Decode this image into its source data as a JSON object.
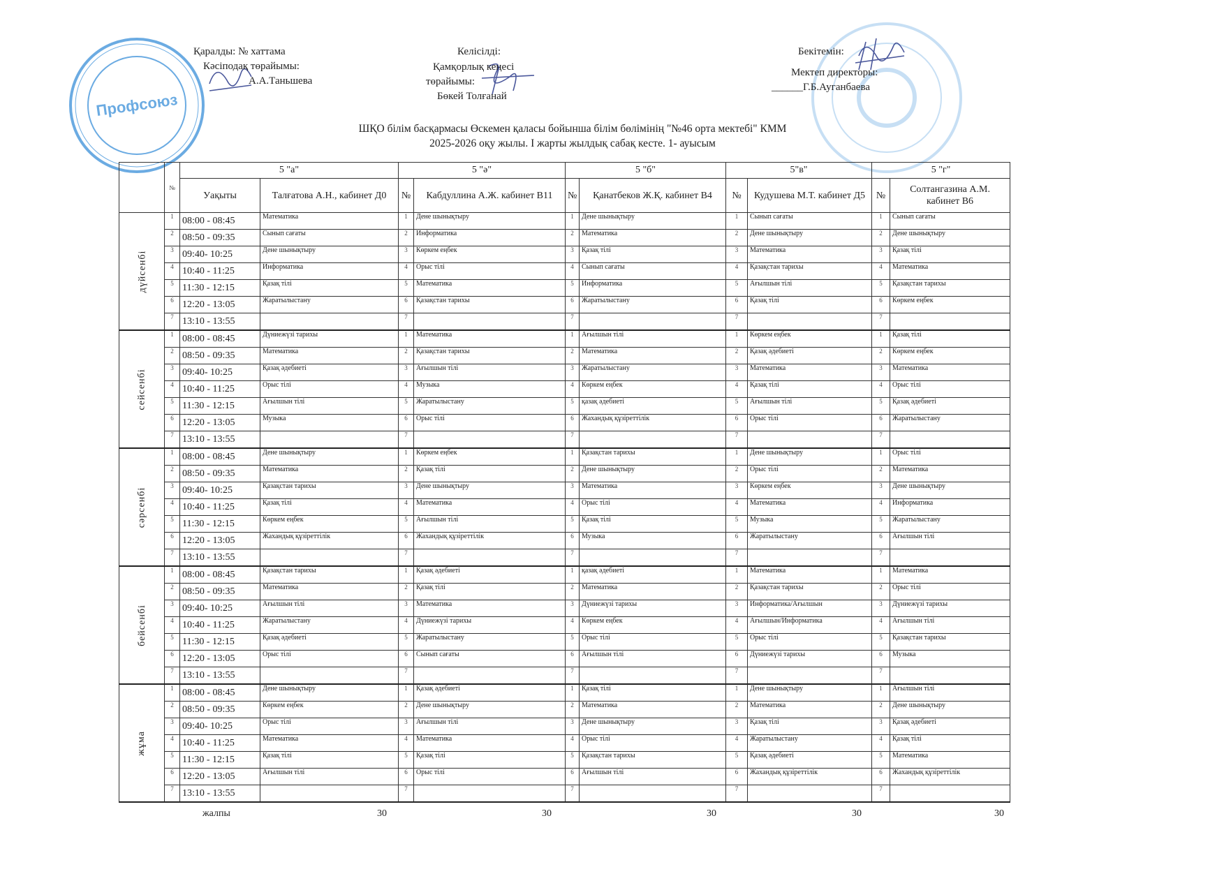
{
  "approvals": {
    "left": {
      "line1": "Қаралды: №        хаттама",
      "line2": "Кәсіподақ төрайымы:",
      "line3": "А.А.Таньшева"
    },
    "center": {
      "line1": "Келісілді:",
      "line2": "Қамқорлық кеңесі",
      "line3": "төрайымы:",
      "line4": "Бөкей Толғанай"
    },
    "right": {
      "line1": "Бекітемін:",
      "line2": "Мектеп директоры:",
      "line3": "______Г.Б.Ауганбаева"
    }
  },
  "stamps": {
    "left_text": "Профсоюз",
    "color": "#3a8fd9"
  },
  "title": {
    "line1": "ШҚО білім басқармасы Өскемен қаласы бойынша білім бөлімінің \"№46 орта мектебі\" КММ",
    "line2": "2025-2026 оқу жылы. I жарты жылдық сабақ кесте. 1- ауысым"
  },
  "table": {
    "num_header": "№",
    "time_header": "Уақыты",
    "classes": [
      {
        "name": "5 \"а\"",
        "teacher": "Талғатова А.Н., кабинет  Д0"
      },
      {
        "name": "5 \"ә\"",
        "teacher": "Кабдуллина А.Ж. кабинет  В11"
      },
      {
        "name": "5 \"б\"",
        "teacher": "Қанатбеков Ж.Қ. кабинет В4"
      },
      {
        "name": "5\"в\"",
        "teacher": "Кудушева М.Т. кабинет Д5"
      },
      {
        "name": "5 \"г\"",
        "teacher": "Солтангазина А.М. кабинет В6"
      }
    ],
    "days": [
      {
        "name": "дүйсенбі",
        "lessons": [
          {
            "n": "1",
            "time": "08:00 - 08:45",
            "subjects": [
              "Математика",
              "Дене шынықтыру",
              "Дене шынықтыру",
              "Сынып сағаты",
              "Сынып сағаты"
            ]
          },
          {
            "n": "2",
            "time": "08:50 - 09:35",
            "subjects": [
              "Сынып сағаты",
              "Информатика",
              "Математика",
              "Дене шынықтыру",
              "Дене шынықтыру"
            ]
          },
          {
            "n": "3",
            "time": "09:40- 10:25",
            "subjects": [
              "Дене шынықтыру",
              "Көркем еңбек",
              "Қазақ тілі",
              "Математика",
              "Қазақ тілі"
            ]
          },
          {
            "n": "4",
            "time": "10:40 - 11:25",
            "subjects": [
              "Информатика",
              "Орыс тілі",
              "Сынып сағаты",
              "Қазақстан тарихы",
              "Математика"
            ]
          },
          {
            "n": "5",
            "time": "11:30 - 12:15",
            "subjects": [
              "Қазақ тілі",
              "Математика",
              "Информатика",
              "Ағылшын тілі",
              "Қазақстан тарихы"
            ]
          },
          {
            "n": "6",
            "time": "12:20 - 13:05",
            "subjects": [
              "Жаратылыстану",
              "Қазақстан тарихы",
              "Жаратылыстану",
              "Қазақ тілі",
              "Көркем еңбек"
            ]
          },
          {
            "n": "7",
            "time": "13:10 - 13:55",
            "subjects": [
              "",
              "",
              "",
              "",
              ""
            ]
          }
        ]
      },
      {
        "name": "сейсенбі",
        "lessons": [
          {
            "n": "1",
            "time": "08:00 - 08:45",
            "subjects": [
              "Дүниежүзі тарихы",
              "Математика",
              "Ағылшын тілі",
              "Көркем еңбек",
              "Қазақ тілі"
            ]
          },
          {
            "n": "2",
            "time": "08:50 - 09:35",
            "subjects": [
              "Математика",
              "Қазақстан тарихы",
              "Математика",
              "Қазақ әдебиеті",
              "Көркем еңбек"
            ]
          },
          {
            "n": "3",
            "time": "09:40- 10:25",
            "subjects": [
              "Қазақ әдебиеті",
              "Ағылшын тілі",
              "Жаратылыстану",
              "Математика",
              "Математика"
            ]
          },
          {
            "n": "4",
            "time": "10:40 - 11:25",
            "subjects": [
              "Орыс тілі",
              "Музыка",
              "Көркем еңбек",
              "Қазақ тілі",
              "Орыс тілі"
            ]
          },
          {
            "n": "5",
            "time": "11:30 - 12:15",
            "subjects": [
              "Ағылшын тілі",
              "Жаратылыстану",
              "қазақ әдебиеті",
              "Ағылшын тілі",
              "Қазақ әдебиеті"
            ]
          },
          {
            "n": "6",
            "time": "12:20 - 13:05",
            "subjects": [
              "Музыка",
              "Орыс тілі",
              "Жахандық құзіреттілік",
              "Орыс тілі",
              "Жаратылыстану"
            ]
          },
          {
            "n": "7",
            "time": "13:10 - 13:55",
            "subjects": [
              "",
              "",
              "",
              "",
              ""
            ]
          }
        ]
      },
      {
        "name": "сәрсенбі",
        "lessons": [
          {
            "n": "1",
            "time": "08:00 - 08:45",
            "subjects": [
              "Дене шынықтыру",
              "Көркем еңбек",
              "Қазақстан тарихы",
              "Дене шынықтыру",
              "Орыс тілі"
            ]
          },
          {
            "n": "2",
            "time": "08:50 - 09:35",
            "subjects": [
              "Математика",
              "Қазақ тілі",
              "Дене шынықтыру",
              "Орыс тілі",
              "Математика"
            ]
          },
          {
            "n": "3",
            "time": "09:40- 10:25",
            "subjects": [
              "Қазақстан тарихы",
              "Дене шынықтыру",
              "Математика",
              "Көркем еңбек",
              "Дене шынықтыру"
            ]
          },
          {
            "n": "4",
            "time": "10:40 - 11:25",
            "subjects": [
              "Қазақ тілі",
              "Математика",
              "Орыс тілі",
              "Математика",
              "Информатика"
            ]
          },
          {
            "n": "5",
            "time": "11:30 - 12:15",
            "subjects": [
              "Көркем еңбек",
              "Ағылшын тілі",
              "Қазақ тілі",
              "Музыка",
              "Жаратылыстану"
            ]
          },
          {
            "n": "6",
            "time": "12:20 - 13:05",
            "subjects": [
              "Жахандық құзіреттілік",
              "Жахандық құзіреттілік",
              "Музыка",
              "Жаратылыстану",
              "Ағылшын тілі"
            ]
          },
          {
            "n": "7",
            "time": "13:10 - 13:55",
            "subjects": [
              "",
              "",
              "",
              "",
              ""
            ]
          }
        ]
      },
      {
        "name": "бейсенбі",
        "lessons": [
          {
            "n": "1",
            "time": "08:00 - 08:45",
            "subjects": [
              "Қазақстан тарихы",
              "Қазақ әдебиеті",
              "қазақ әдебиеті",
              "Математика",
              "Математика"
            ]
          },
          {
            "n": "2",
            "time": "08:50 - 09:35",
            "subjects": [
              "Математика",
              "Қазақ тілі",
              "Математика",
              "Қазақстан тарихы",
              "Орыс тілі"
            ]
          },
          {
            "n": "3",
            "time": "09:40- 10:25",
            "subjects": [
              "Ағылшын тілі",
              "Математика",
              "Дүниежүзі тарихы",
              "Информатика/Ағылшын",
              "Дүниежүзі тарихы"
            ]
          },
          {
            "n": "4",
            "time": "10:40 - 11:25",
            "subjects": [
              "Жаратылыстану",
              "Дүниежүзі тарихы",
              "Көркем еңбек",
              "Ағылшын/Информатика",
              "Ағылшын тілі"
            ]
          },
          {
            "n": "5",
            "time": "11:30 - 12:15",
            "subjects": [
              "Қазақ әдебиеті",
              "Жаратылыстану",
              "Орыс тілі",
              "Орыс тілі",
              "Қазақстан тарихы"
            ]
          },
          {
            "n": "6",
            "time": "12:20 - 13:05",
            "subjects": [
              "Орыс тілі",
              "Сынып сағаты",
              "Ағылшын тілі",
              "Дүниежүзі тарихы",
              "Музыка"
            ]
          },
          {
            "n": "7",
            "time": "13:10 - 13:55",
            "subjects": [
              "",
              "",
              "",
              "",
              ""
            ]
          }
        ]
      },
      {
        "name": "жұма",
        "lessons": [
          {
            "n": "1",
            "time": "08:00 - 08:45",
            "subjects": [
              "Дене шынықтыру",
              "Қазақ әдебиеті",
              "Қазақ тілі",
              "Дене шынықтыру",
              "Ағылшын тілі"
            ]
          },
          {
            "n": "2",
            "time": "08:50 - 09:35",
            "subjects": [
              "Көркем еңбек",
              "Дене шынықтыру",
              "Математика",
              "Математика",
              "Дене шынықтыру"
            ]
          },
          {
            "n": "3",
            "time": "09:40- 10:25",
            "subjects": [
              "Орыс тілі",
              "Ағылшын тілі",
              "Дене шынықтыру",
              "Қазақ тілі",
              "Қазақ әдебиеті"
            ]
          },
          {
            "n": "4",
            "time": "10:40 - 11:25",
            "subjects": [
              "Математика",
              "Математика",
              "Орыс тілі",
              "Жаратылыстану",
              "Қазақ тілі"
            ]
          },
          {
            "n": "5",
            "time": "11:30 - 12:15",
            "subjects": [
              "Қазақ тілі",
              "Қазақ тілі",
              "Қазақстан тарихы",
              "Қазақ әдебиеті",
              "Математика"
            ]
          },
          {
            "n": "6",
            "time": "12:20 - 13:05",
            "subjects": [
              "Ағылшын тілі",
              "Орыс тілі",
              "Ағылшын тілі",
              "Жахандық құзіреттілік",
              "Жахандық құзіреттілік"
            ]
          },
          {
            "n": "7",
            "time": "13:10 - 13:55",
            "subjects": [
              "",
              "",
              "",
              "",
              ""
            ]
          }
        ]
      }
    ]
  },
  "footer": {
    "label": "жалпы",
    "totals": [
      "30",
      "30",
      "30",
      "30",
      "30"
    ]
  }
}
